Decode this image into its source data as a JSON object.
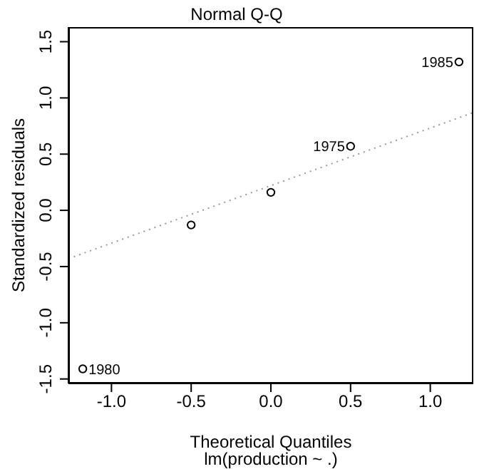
{
  "chart_data": {
    "type": "scatter",
    "title": "Normal Q-Q",
    "subtitle": "lm(production ~ .)",
    "xlabel": "Theoretical Quantiles",
    "ylabel": "Standardized residuals",
    "xlim": [
      -1.27,
      1.27
    ],
    "ylim": [
      -1.54,
      1.63
    ],
    "xticks": [
      {
        "value": -1,
        "label": "-1.0"
      },
      {
        "value": -0.5,
        "label": "-0.5"
      },
      {
        "value": 0,
        "label": "0.0"
      },
      {
        "value": 0.5,
        "label": "0.5"
      },
      {
        "value": 1,
        "label": "1.0"
      }
    ],
    "yticks": [
      {
        "value": -1.5,
        "label": "-1.5"
      },
      {
        "value": -1,
        "label": "-1.0"
      },
      {
        "value": -0.5,
        "label": "-0.5"
      },
      {
        "value": 0,
        "label": "0.0"
      },
      {
        "value": 0.5,
        "label": "0.5"
      },
      {
        "value": 1,
        "label": "1.0"
      },
      {
        "value": 1.5,
        "label": "1.5"
      }
    ],
    "grid": false,
    "legend": false,
    "series": [
      {
        "type": "scatter",
        "color": "#000000",
        "marker": "circle",
        "x": [
          -1.18,
          -0.5,
          0,
          0.5,
          1.18
        ],
        "values": [
          -1.41,
          -0.13,
          0.16,
          0.57,
          1.32
        ]
      },
      {
        "type": "line",
        "color": "#999999",
        "line_style": "dotted",
        "marker": "none",
        "x": [
          -1.27,
          1.27
        ],
        "values": [
          -0.43,
          0.87
        ]
      }
    ],
    "annotations": [
      {
        "text": "1980",
        "x": -1.18,
        "y": -1.41
      },
      {
        "text": "1975",
        "x": 0.5,
        "y": 0.57
      },
      {
        "text": "1985",
        "x": 1.18,
        "y": 1.32
      }
    ]
  }
}
